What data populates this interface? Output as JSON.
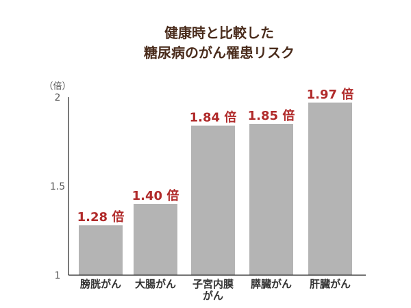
{
  "chart_data": {
    "type": "bar",
    "title": [
      "健康時と比較した",
      "糖尿病のがん罹患リスク"
    ],
    "ylabel": "（倍）",
    "ylim": [
      1,
      2
    ],
    "yticks": [
      "1",
      "1.5",
      "2"
    ],
    "grid": false,
    "categories": [
      [
        "膀胱がん"
      ],
      [
        "大腸がん"
      ],
      [
        "子宮内膜",
        "がん"
      ],
      [
        "膵臓がん"
      ],
      [
        "肝臓がん"
      ]
    ],
    "values": [
      1.28,
      1.4,
      1.84,
      1.85,
      1.97
    ],
    "data_labels": [
      "1.28 倍",
      "1.40 倍",
      "1.84 倍",
      "1.85 倍",
      "1.97 倍"
    ],
    "colors": {
      "bar": "#b4b4b4",
      "label": "#b02a2a",
      "title": "#4a2c1c",
      "axis": "#222222",
      "tick": "#555555"
    }
  }
}
